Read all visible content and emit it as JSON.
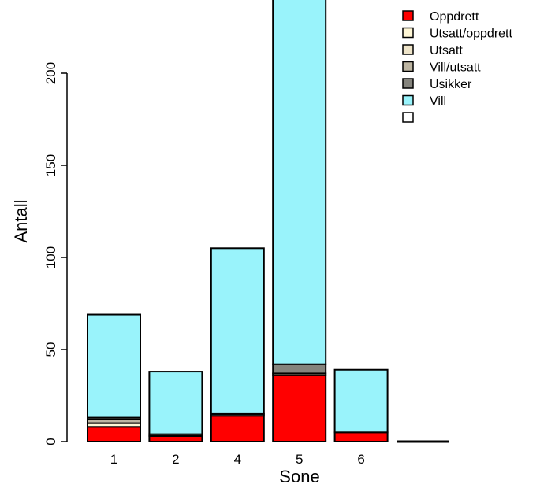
{
  "chart_data": {
    "type": "bar",
    "stacked": true,
    "xlabel": "Sone",
    "ylabel": "Antall",
    "categories": [
      "1",
      "2",
      "4",
      "5",
      "6",
      ""
    ],
    "y_ticks": [
      0,
      50,
      100,
      150,
      200
    ],
    "ylim": [
      0,
      240
    ],
    "series": [
      {
        "name": "Oppdrett",
        "color": "#FF0000",
        "values": [
          8,
          3,
          14,
          36,
          5,
          0
        ]
      },
      {
        "name": "Utsatt/oppdrett",
        "color": "#FFF7D6",
        "values": [
          2,
          0,
          0,
          1,
          0,
          0
        ]
      },
      {
        "name": "Utsatt",
        "color": "#EEE4C9",
        "values": [
          0,
          0,
          0,
          0,
          0,
          0
        ]
      },
      {
        "name": "Vill/utsatt",
        "color": "#BDB5A2",
        "values": [
          2,
          0,
          0,
          0,
          0,
          0
        ]
      },
      {
        "name": "Usikker",
        "color": "#85847D",
        "values": [
          1,
          1,
          1,
          5,
          0,
          0
        ]
      },
      {
        "name": "Vill",
        "color": "#99F3FB",
        "values": [
          56,
          34,
          90,
          208,
          34,
          0
        ]
      },
      {
        "name": "",
        "color": "#FFFFFF",
        "values": [
          0,
          0,
          0,
          0,
          0,
          0
        ]
      }
    ],
    "legend_position": "top-right",
    "grid": false
  }
}
